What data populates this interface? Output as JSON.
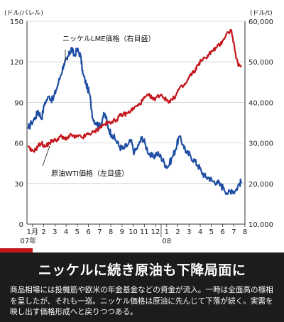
{
  "chart_data": {
    "type": "line",
    "left_unit": "(ドル/バレル)",
    "right_unit": "(ドル/t)",
    "y_left": {
      "ticks": [
        0,
        30,
        60,
        90,
        120,
        150
      ],
      "range": [
        0,
        150
      ]
    },
    "y_right": {
      "ticks": [
        "10,000",
        "20,000",
        "30,000",
        "40,000",
        "50,000",
        "60,000"
      ],
      "range": [
        10000,
        60000
      ]
    },
    "x_ticks": [
      "1月",
      "2",
      "3",
      "4",
      "5",
      "6",
      "7",
      "8",
      "9",
      "10",
      "11",
      "12",
      "1",
      "2",
      "3",
      "4",
      "5",
      "6",
      "7",
      "8"
    ],
    "x_year_labels": [
      "07年",
      "08"
    ],
    "series": [
      {
        "name": "ニッケルLME価格（右目盛）",
        "axis": "right",
        "color": "#1f4ea3",
        "x": [
          0.1,
          0.4,
          0.8,
          1.0,
          1.3,
          1.6,
          2.0,
          2.3,
          2.6,
          3.0,
          3.3,
          3.6,
          3.8,
          4.0,
          4.2,
          4.5,
          4.8,
          5.0,
          5.3,
          5.6,
          5.9,
          6.2,
          6.5,
          6.8,
          7.0,
          7.3,
          7.6,
          8.0,
          8.3,
          8.6,
          9.0,
          9.3,
          9.6,
          10.0,
          10.3,
          10.6,
          11.0,
          11.3,
          11.6,
          12.0,
          12.3,
          12.6,
          13.0,
          13.3,
          13.6,
          14.0,
          14.3,
          14.6,
          15.0,
          15.3,
          15.6,
          16.0,
          16.3,
          16.6,
          17.0,
          17.3,
          17.6,
          18.0,
          18.3,
          18.6,
          19.0,
          19.2
        ],
        "values": [
          33500,
          35000,
          36500,
          38000,
          36000,
          40000,
          41500,
          40500,
          43000,
          46500,
          49500,
          50500,
          52000,
          53500,
          51500,
          53000,
          51500,
          47000,
          44500,
          42000,
          36000,
          35000,
          34000,
          36500,
          37000,
          33500,
          32000,
          30500,
          29000,
          28500,
          29500,
          30500,
          27500,
          29500,
          31500,
          29500,
          27000,
          26500,
          27500,
          26500,
          25000,
          24000,
          26500,
          28500,
          31500,
          29500,
          27500,
          27000,
          25500,
          24500,
          23000,
          21500,
          21500,
          20500,
          20500,
          19500,
          19000,
          17500,
          18500,
          18000,
          20000,
          20500
        ]
      },
      {
        "name": "原油WTI価格（左目盛）",
        "axis": "left",
        "color": "#c4161c",
        "x": [
          0.1,
          0.4,
          0.8,
          1.0,
          1.3,
          1.6,
          2.0,
          2.3,
          2.6,
          3.0,
          3.3,
          3.6,
          4.0,
          4.3,
          4.6,
          5.0,
          5.3,
          5.6,
          6.0,
          6.3,
          6.6,
          7.0,
          7.3,
          7.6,
          8.0,
          8.3,
          8.6,
          9.0,
          9.3,
          9.6,
          10.0,
          10.3,
          10.6,
          11.0,
          11.3,
          11.6,
          12.0,
          12.3,
          12.6,
          13.0,
          13.3,
          13.6,
          14.0,
          14.3,
          14.6,
          15.0,
          15.3,
          15.6,
          16.0,
          16.3,
          16.6,
          17.0,
          17.3,
          17.6,
          18.0,
          18.3,
          18.6,
          18.9,
          19.2
        ],
        "values": [
          57,
          54,
          55,
          58,
          60,
          57,
          60,
          62,
          62,
          65,
          63,
          64,
          66,
          64,
          65,
          64,
          66,
          67,
          68,
          70,
          72,
          74,
          75,
          76,
          77,
          80,
          81,
          82,
          84,
          86,
          88,
          91,
          94,
          95,
          92,
          94,
          96,
          93,
          91,
          92,
          95,
          100,
          102,
          105,
          110,
          113,
          118,
          121,
          123,
          126,
          128,
          131,
          133,
          137,
          142,
          143,
          128,
          117,
          117
        ]
      }
    ]
  },
  "annotations": {
    "nickel": "ニッケルLME価格（右目盛）",
    "oil": "原油WTI価格（左目盛）"
  },
  "caption": {
    "headline": "ニッケルに続き原油も下降局面に",
    "body": "商品相場には投機筋や欧米の年金基金などの資金が流入。一時は全面高の様相を呈したが、それも一巡。ニッケル価格は原油に先んじて下落が続く。実需を映し出す価格形成へと戻りつつある。"
  },
  "colors": {
    "background": "#ffffff",
    "caption_bg": "#1c1c1c",
    "accent": "#c4161c",
    "nickel": "#1f4ea3",
    "oil": "#c4161c"
  }
}
